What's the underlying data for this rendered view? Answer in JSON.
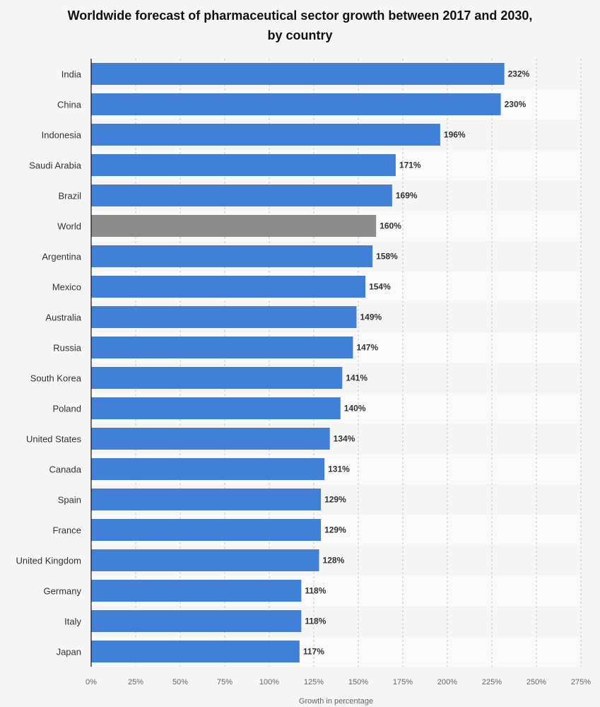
{
  "chart_data": {
    "type": "bar",
    "orientation": "horizontal",
    "title_line1": "Worldwide forecast of pharmaceutical sector growth between 2017 and 2030,",
    "title_line2": "by country",
    "xlabel": "Growth in percentage",
    "ylabel": "",
    "xlim": [
      0,
      275
    ],
    "xticks": [
      "0%",
      "25%",
      "50%",
      "75%",
      "100%",
      "125%",
      "150%",
      "175%",
      "200%",
      "225%",
      "250%",
      "275%"
    ],
    "xtick_values": [
      0,
      25,
      50,
      75,
      100,
      125,
      150,
      175,
      200,
      225,
      250,
      275
    ],
    "grid": true,
    "categories": [
      "India",
      "China",
      "Indonesia",
      "Saudi Arabia",
      "Brazil",
      "World",
      "Argentina",
      "Mexico",
      "Australia",
      "Russia",
      "South Korea",
      "Poland",
      "United States",
      "Canada",
      "Spain",
      "France",
      "United Kingdom",
      "Germany",
      "Italy",
      "Japan"
    ],
    "values": [
      232,
      230,
      196,
      171,
      169,
      160,
      158,
      154,
      149,
      147,
      141,
      140,
      134,
      131,
      129,
      129,
      128,
      118,
      118,
      117
    ],
    "value_labels": [
      "232%",
      "230%",
      "196%",
      "171%",
      "169%",
      "160%",
      "158%",
      "154%",
      "149%",
      "147%",
      "141%",
      "140%",
      "134%",
      "131%",
      "129%",
      "129%",
      "128%",
      "118%",
      "118%",
      "117%"
    ],
    "highlight_category": "World",
    "colors": {
      "bar": "#4180d8",
      "highlight": "#8c8c8c",
      "grid": "#c8c8c8",
      "axis": "#111111"
    }
  }
}
